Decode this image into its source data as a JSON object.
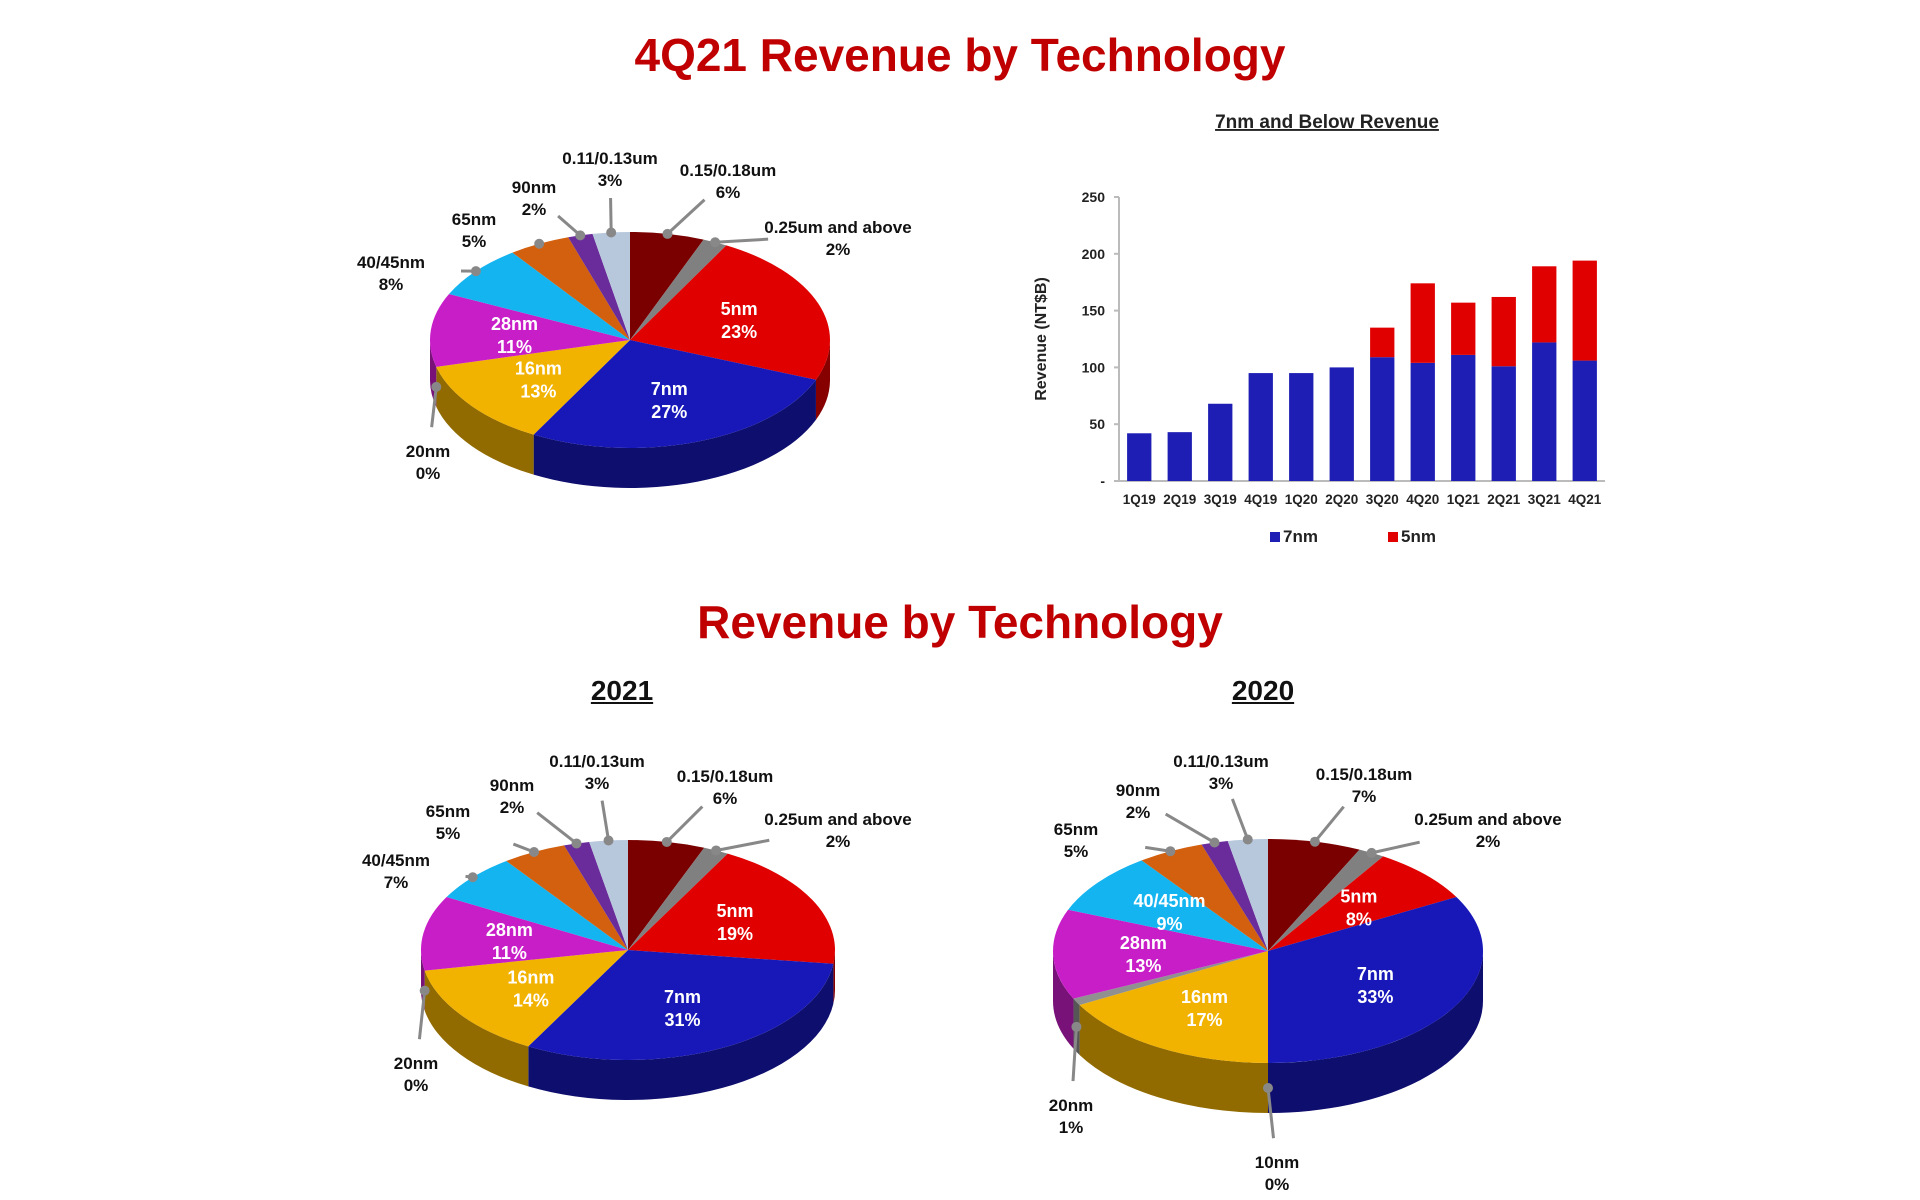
{
  "titles": {
    "top": "4Q21 Revenue by Technology",
    "bottom": "Revenue by Technology"
  },
  "chart_data": [
    {
      "type": "pie",
      "title": "",
      "style": "3d",
      "slices": [
        {
          "label": "0.15/0.18um",
          "value": 6,
          "color": "#7a0000"
        },
        {
          "label": "0.25um and above",
          "value": 2,
          "color": "#808080"
        },
        {
          "label": "5nm",
          "value": 23,
          "color": "#e00000"
        },
        {
          "label": "7nm",
          "value": 27,
          "color": "#1818b8"
        },
        {
          "label": "16nm",
          "value": 13,
          "color": "#f2b200"
        },
        {
          "label": "20nm",
          "value": 0,
          "color": "#909090"
        },
        {
          "label": "28nm",
          "value": 11,
          "color": "#c81ec8"
        },
        {
          "label": "40/45nm",
          "value": 8,
          "color": "#14b4f0"
        },
        {
          "label": "65nm",
          "value": 5,
          "color": "#d2600e"
        },
        {
          "label": "90nm",
          "value": 2,
          "color": "#6a2c9a"
        },
        {
          "label": "0.11/0.13um",
          "value": 3,
          "color": "#b8c8dc"
        }
      ]
    },
    {
      "type": "bar",
      "stacked": true,
      "title": "7nm and Below Revenue",
      "xlabel": "",
      "ylabel": "Revenue (NT$B)",
      "ylim": [
        0,
        250
      ],
      "yticks": [
        "-",
        "50",
        "100",
        "150",
        "200",
        "250"
      ],
      "categories": [
        "1Q19",
        "2Q19",
        "3Q19",
        "4Q19",
        "1Q20",
        "2Q20",
        "3Q20",
        "4Q20",
        "1Q21",
        "2Q21",
        "3Q21",
        "4Q21"
      ],
      "series": [
        {
          "name": "7nm",
          "color": "#1e1eb4",
          "values": [
            42,
            43,
            68,
            95,
            95,
            100,
            109,
            104,
            111,
            101,
            122,
            106
          ]
        },
        {
          "name": "5nm",
          "color": "#e00000",
          "values": [
            0,
            0,
            0,
            0,
            0,
            0,
            26,
            70,
            46,
            61,
            67,
            88
          ]
        }
      ],
      "legend": "bottom",
      "grid": false
    },
    {
      "type": "pie",
      "title": "2021",
      "style": "3d",
      "slices": [
        {
          "label": "0.15/0.18um",
          "value": 6,
          "color": "#7a0000"
        },
        {
          "label": "0.25um and above",
          "value": 2,
          "color": "#808080"
        },
        {
          "label": "5nm",
          "value": 19,
          "color": "#e00000"
        },
        {
          "label": "7nm",
          "value": 31,
          "color": "#1818b8"
        },
        {
          "label": "16nm",
          "value": 14,
          "color": "#f2b200"
        },
        {
          "label": "20nm",
          "value": 0,
          "color": "#909090"
        },
        {
          "label": "28nm",
          "value": 11,
          "color": "#c81ec8"
        },
        {
          "label": "40/45nm",
          "value": 7,
          "color": "#14b4f0"
        },
        {
          "label": "65nm",
          "value": 5,
          "color": "#d2600e"
        },
        {
          "label": "90nm",
          "value": 2,
          "color": "#6a2c9a"
        },
        {
          "label": "0.11/0.13um",
          "value": 3,
          "color": "#b8c8dc"
        }
      ]
    },
    {
      "type": "pie",
      "title": "2020",
      "style": "3d",
      "slices": [
        {
          "label": "0.15/0.18um",
          "value": 7,
          "color": "#7a0000"
        },
        {
          "label": "0.25um and above",
          "value": 2,
          "color": "#808080"
        },
        {
          "label": "5nm",
          "value": 8,
          "color": "#e00000"
        },
        {
          "label": "7nm",
          "value": 33,
          "color": "#1818b8"
        },
        {
          "label": "10nm",
          "value": 0,
          "color": "#404040"
        },
        {
          "label": "16nm",
          "value": 17,
          "color": "#f2b200"
        },
        {
          "label": "20nm",
          "value": 1,
          "color": "#909090"
        },
        {
          "label": "28nm",
          "value": 13,
          "color": "#c81ec8"
        },
        {
          "label": "40/45nm",
          "value": 9,
          "color": "#14b4f0"
        },
        {
          "label": "65nm",
          "value": 5,
          "color": "#d2600e"
        },
        {
          "label": "90nm",
          "value": 2,
          "color": "#6a2c9a"
        },
        {
          "label": "0.11/0.13um",
          "value": 3,
          "color": "#b8c8dc"
        }
      ]
    }
  ]
}
